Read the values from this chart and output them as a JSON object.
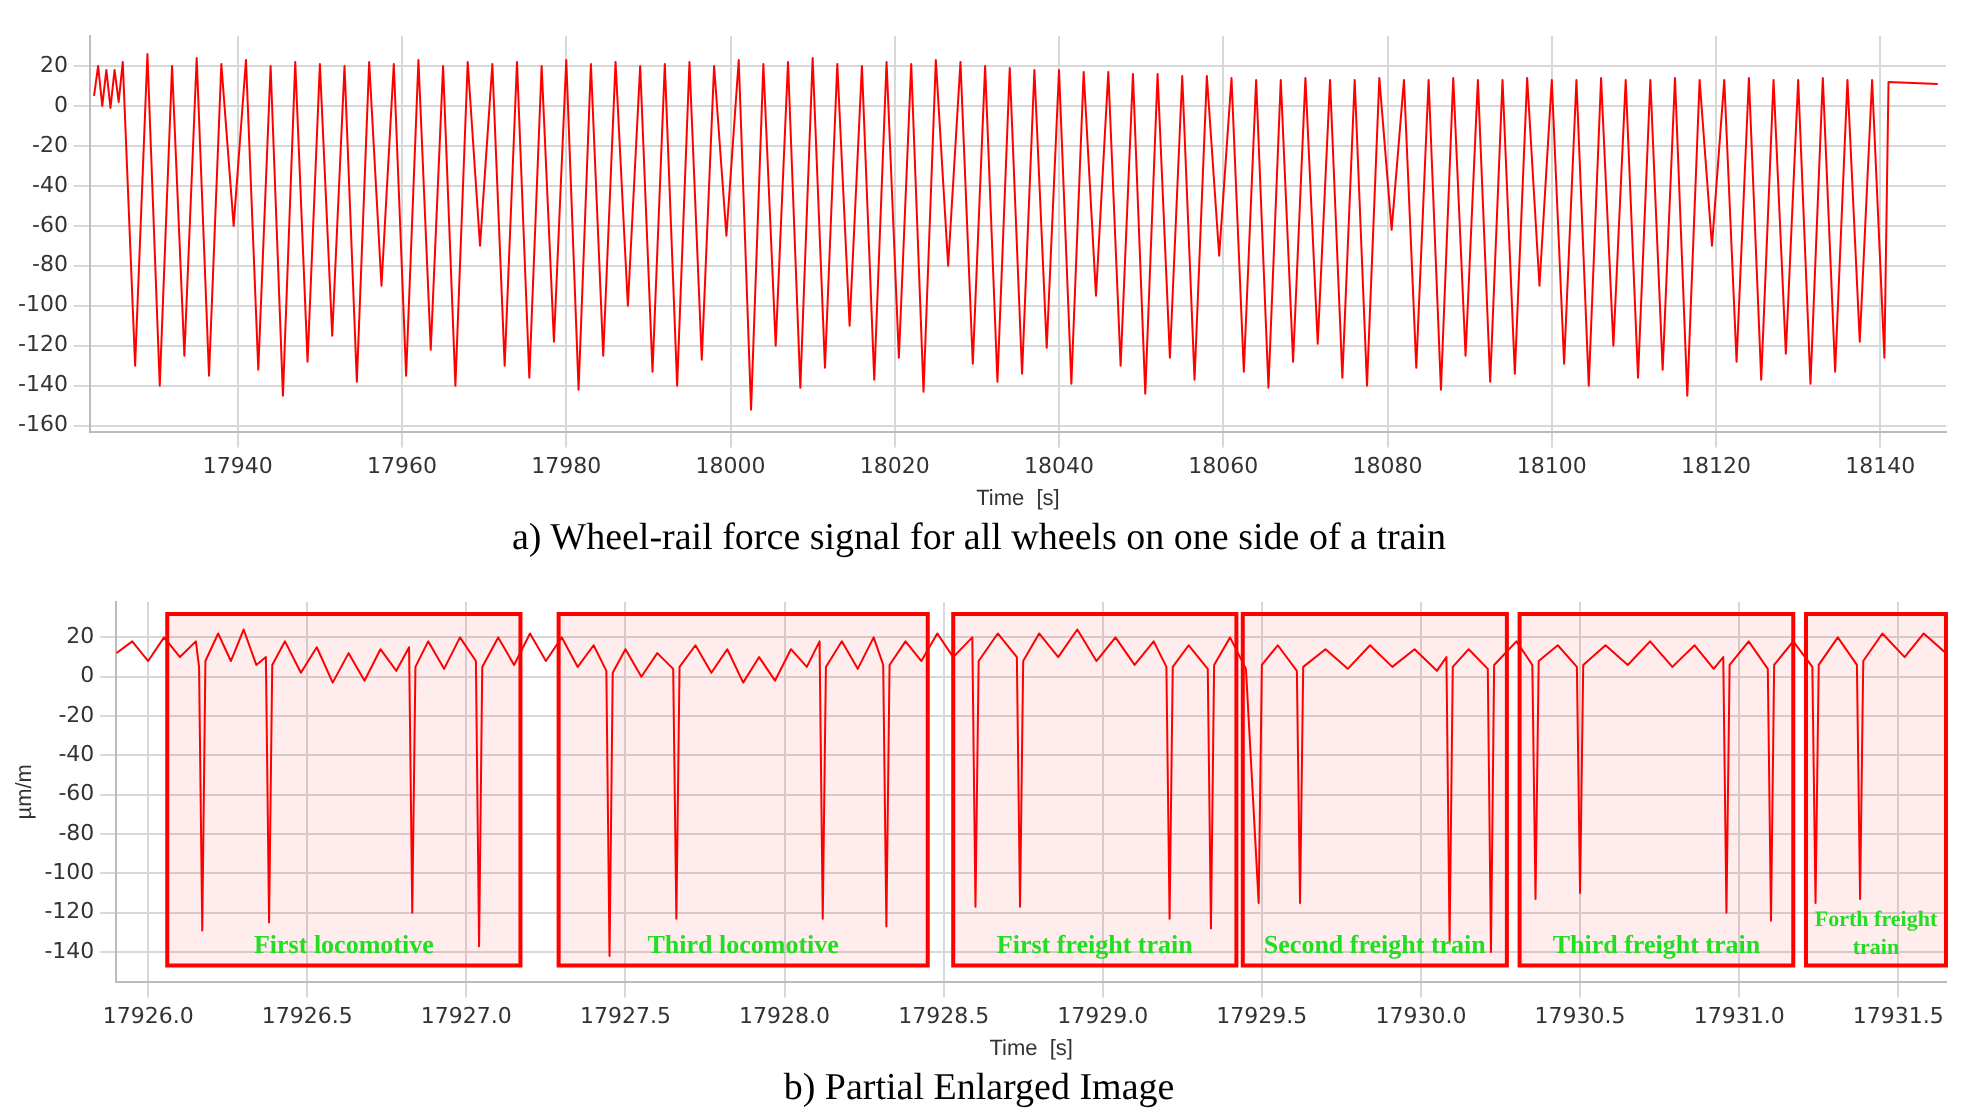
{
  "chart_data": [
    {
      "type": "line",
      "title": "a) Wheel-rail force signal for all wheels on one side of a train",
      "xlabel": "Time  [s]",
      "xlim": [
        17922,
        18148
      ],
      "xticks": [
        17940,
        17960,
        17980,
        18000,
        18020,
        18040,
        18060,
        18080,
        18100,
        18120,
        18140
      ],
      "ylim": [
        -163,
        35
      ],
      "yticks": [
        -160,
        -140,
        -120,
        -100,
        -80,
        -60,
        -40,
        -20,
        0,
        20
      ],
      "grid": true,
      "series": [
        {
          "color": "#ff0000",
          "x": [
            17922.5,
            17923,
            17923.5,
            17924,
            17924.5,
            17925,
            17925.5,
            17926,
            17927.5,
            17929,
            17930.5,
            17932,
            17933.5,
            17935,
            17936.5,
            17938,
            17939.5,
            17941,
            17942.5,
            17944,
            17945.5,
            17947,
            17948.5,
            17950,
            17951.5,
            17953,
            17954.5,
            17956,
            17957.5,
            17959,
            17960.5,
            17962,
            17963.5,
            17965,
            17966.5,
            17968,
            17969.5,
            17971,
            17972.5,
            17974,
            17975.5,
            17977,
            17978.5,
            17980,
            17981.5,
            17983,
            17984.5,
            17986,
            17987.5,
            17989,
            17990.5,
            17992,
            17993.5,
            17995,
            17996.5,
            17998,
            17999.5,
            18001,
            18002.5,
            18004,
            18005.5,
            18007,
            18008.5,
            18010,
            18011.5,
            18013,
            18014.5,
            18016,
            18017.5,
            18019,
            18020.5,
            18022,
            18023.5,
            18025,
            18026.5,
            18028,
            18029.5,
            18031,
            18032.5,
            18034,
            18035.5,
            18037,
            18038.5,
            18040,
            18041.5,
            18043,
            18044.5,
            18046,
            18047.5,
            18049,
            18050.5,
            18052,
            18053.5,
            18055,
            18056.5,
            18058,
            18059.5,
            18061,
            18062.5,
            18064,
            18065.5,
            18067,
            18068.5,
            18070,
            18071.5,
            18073,
            18074.5,
            18076,
            18077.5,
            18079,
            18080.5,
            18082,
            18083.5,
            18085,
            18086.5,
            18088,
            18089.5,
            18091,
            18092.5,
            18094,
            18095.5,
            18097,
            18098.5,
            18100,
            18101.5,
            18103,
            18104.5,
            18106,
            18107.5,
            18109,
            18110.5,
            18112,
            18113.5,
            18115,
            18116.5,
            18118,
            18119.5,
            18121,
            18122.5,
            18124,
            18125.5,
            18127,
            18128.5,
            18130,
            18131.5,
            18133,
            18134.5,
            18136,
            18137.5,
            18139,
            18140.5,
            18141,
            18147
          ],
          "values": [
            5,
            20,
            0,
            18,
            -1,
            18,
            2,
            22,
            -130,
            26,
            -140,
            20,
            -125,
            24,
            -135,
            21,
            -60,
            23,
            -132,
            20,
            -145,
            22,
            -128,
            21,
            -115,
            20,
            -138,
            22,
            -90,
            21,
            -135,
            23,
            -122,
            20,
            -140,
            22,
            -70,
            21,
            -130,
            22,
            -136,
            20,
            -118,
            23,
            -142,
            21,
            -125,
            22,
            -100,
            20,
            -133,
            21,
            -140,
            22,
            -127,
            20,
            -65,
            23,
            -152,
            21,
            -120,
            22,
            -141,
            24,
            -131,
            21,
            -110,
            20,
            -137,
            22,
            -126,
            21,
            -143,
            23,
            -80,
            22,
            -129,
            20,
            -138,
            19,
            -134,
            18,
            -121,
            18,
            -139,
            17,
            -95,
            17,
            -130,
            16,
            -144,
            16,
            -126,
            15,
            -137,
            15,
            -75,
            14,
            -133,
            13,
            -141,
            13,
            -128,
            14,
            -119,
            13,
            -136,
            13,
            -140,
            14,
            -62,
            13,
            -131,
            13,
            -142,
            14,
            -125,
            13,
            -138,
            13,
            -134,
            14,
            -90,
            13,
            -129,
            13,
            -140,
            14,
            -120,
            13,
            -136,
            13,
            -132,
            14,
            -145,
            13,
            -70,
            13,
            -128,
            14,
            -137,
            13,
            -124,
            13,
            -139,
            14,
            -133,
            13,
            -118,
            13,
            -126,
            12,
            11
          ]
        }
      ]
    },
    {
      "type": "line",
      "title": "b) Partial Enlarged Image",
      "xlabel": "Time  [s]",
      "ylabel": "µm/m",
      "xlim": [
        17925.9,
        17931.65
      ],
      "xticks": [
        {
          "value": 17926,
          "label": "17926.0"
        },
        17926.5,
        {
          "value": 17927,
          "label": "17927.0"
        },
        17927.5,
        {
          "value": 17928,
          "label": "17928.0"
        },
        17928.5,
        {
          "value": 17929,
          "label": "17929.0"
        },
        17929.5,
        {
          "value": 17930,
          "label": "17930.0"
        },
        17930.5,
        {
          "value": 17931,
          "label": "17931.0"
        },
        17931.5
      ],
      "ylim": [
        -155,
        38
      ],
      "yticks": [
        -140,
        -120,
        -100,
        -80,
        -60,
        -40,
        -20,
        0,
        20
      ],
      "grid": true,
      "bands": [
        {
          "axis": "x",
          "from": 17926.06,
          "to": 17927.17,
          "label": "First locomotive",
          "color": "#ff0000"
        },
        {
          "axis": "x",
          "from": 17927.29,
          "to": 17928.45,
          "label": "Third locomotive",
          "color": "#ff0000"
        },
        {
          "axis": "x",
          "from": 17928.53,
          "to": 17929.42,
          "label": "First freight train",
          "color": "#ff0000"
        },
        {
          "axis": "x",
          "from": 17929.44,
          "to": 17930.27,
          "label": "Second freight train",
          "color": "#ff0000"
        },
        {
          "axis": "x",
          "from": 17930.31,
          "to": 17931.17,
          "label": "Third freight train",
          "color": "#ff0000"
        },
        {
          "axis": "x",
          "from": 17931.21,
          "to": 17931.65,
          "label": "Forth freight train",
          "color": "#ff0000"
        }
      ],
      "series": [
        {
          "color": "#ff0000",
          "x": [
            17925.9,
            17925.95,
            17926.0,
            17926.05,
            17926.1,
            17926.15,
            17926.16,
            17926.17,
            17926.18,
            17926.22,
            17926.26,
            17926.3,
            17926.34,
            17926.37,
            17926.38,
            17926.39,
            17926.43,
            17926.48,
            17926.53,
            17926.58,
            17926.63,
            17926.68,
            17926.73,
            17926.78,
            17926.82,
            17926.83,
            17926.84,
            17926.88,
            17926.93,
            17926.98,
            17927.03,
            17927.04,
            17927.05,
            17927.1,
            17927.15,
            17927.2,
            17927.25,
            17927.3,
            17927.35,
            17927.4,
            17927.44,
            17927.45,
            17927.46,
            17927.5,
            17927.55,
            17927.6,
            17927.65,
            17927.66,
            17927.67,
            17927.72,
            17927.77,
            17927.82,
            17927.87,
            17927.92,
            17927.97,
            17928.02,
            17928.07,
            17928.11,
            17928.12,
            17928.13,
            17928.18,
            17928.23,
            17928.28,
            17928.31,
            17928.32,
            17928.33,
            17928.38,
            17928.43,
            17928.48,
            17928.53,
            17928.59,
            17928.6,
            17928.61,
            17928.67,
            17928.73,
            17928.74,
            17928.75,
            17928.8,
            17928.86,
            17928.92,
            17928.98,
            17929.04,
            17929.1,
            17929.16,
            17929.2,
            17929.21,
            17929.22,
            17929.27,
            17929.33,
            17929.34,
            17929.35,
            17929.4,
            17929.45,
            17929.49,
            17929.5,
            17929.55,
            17929.61,
            17929.62,
            17929.63,
            17929.7,
            17929.77,
            17929.84,
            17929.91,
            17929.98,
            17930.05,
            17930.08,
            17930.09,
            17930.1,
            17930.15,
            17930.21,
            17930.22,
            17930.23,
            17930.3,
            17930.35,
            17930.36,
            17930.37,
            17930.43,
            17930.49,
            17930.5,
            17930.51,
            17930.58,
            17930.65,
            17930.72,
            17930.79,
            17930.86,
            17930.92,
            17930.95,
            17930.96,
            17930.97,
            17931.03,
            17931.09,
            17931.1,
            17931.11,
            17931.17,
            17931.23,
            17931.24,
            17931.25,
            17931.31,
            17931.37,
            17931.38,
            17931.39,
            17931.45,
            17931.52,
            17931.58,
            17931.65
          ],
          "values": [
            12,
            18,
            8,
            20,
            10,
            18,
            5,
            -129,
            8,
            22,
            8,
            24,
            6,
            10,
            -125,
            6,
            18,
            2,
            15,
            -3,
            12,
            -2,
            14,
            3,
            15,
            -120,
            5,
            18,
            4,
            20,
            8,
            -137,
            5,
            20,
            6,
            22,
            8,
            20,
            5,
            16,
            3,
            -142,
            2,
            14,
            0,
            12,
            4,
            -123,
            5,
            16,
            2,
            14,
            -3,
            10,
            -2,
            14,
            5,
            18,
            -123,
            5,
            18,
            4,
            20,
            6,
            -127,
            6,
            18,
            8,
            22,
            10,
            20,
            -117,
            8,
            22,
            10,
            -117,
            8,
            22,
            10,
            24,
            8,
            20,
            6,
            18,
            5,
            -123,
            5,
            16,
            4,
            -128,
            6,
            20,
            4,
            -115,
            6,
            16,
            3,
            -115,
            5,
            14,
            4,
            16,
            5,
            14,
            3,
            10,
            -135,
            5,
            14,
            4,
            -140,
            6,
            18,
            6,
            -113,
            8,
            16,
            5,
            -110,
            6,
            16,
            6,
            18,
            5,
            16,
            4,
            10,
            -120,
            6,
            18,
            4,
            -124,
            6,
            18,
            5,
            -115,
            6,
            20,
            6,
            -113,
            8,
            22,
            10,
            22,
            12
          ]
        }
      ]
    }
  ]
}
